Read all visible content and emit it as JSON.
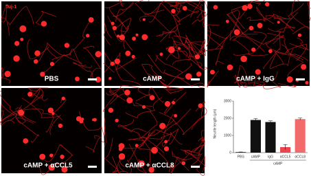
{
  "panels": {
    "stain": "Tuj-1",
    "labels": [
      "PBS",
      "cAMP",
      "cAMP + IgG",
      "cAMP + αCCL5",
      "cAMP + αCCL8"
    ]
  },
  "chart_data": {
    "type": "bar",
    "y_label": "Neurite length (μm)",
    "categories": [
      "PBS",
      "cAMP",
      "IgG",
      "αCCL5",
      "αCCL8"
    ],
    "values": [
      30,
      1900,
      1780,
      320,
      1950
    ],
    "errors": [
      10,
      80,
      70,
      150,
      60
    ],
    "colors": [
      "#111111",
      "#111111",
      "#111111",
      "#e8474f",
      "#f26b6b"
    ],
    "group_label": "cAMP",
    "ylim": [
      0,
      3000
    ],
    "yticks": [
      0,
      1000,
      2000,
      3000
    ]
  }
}
